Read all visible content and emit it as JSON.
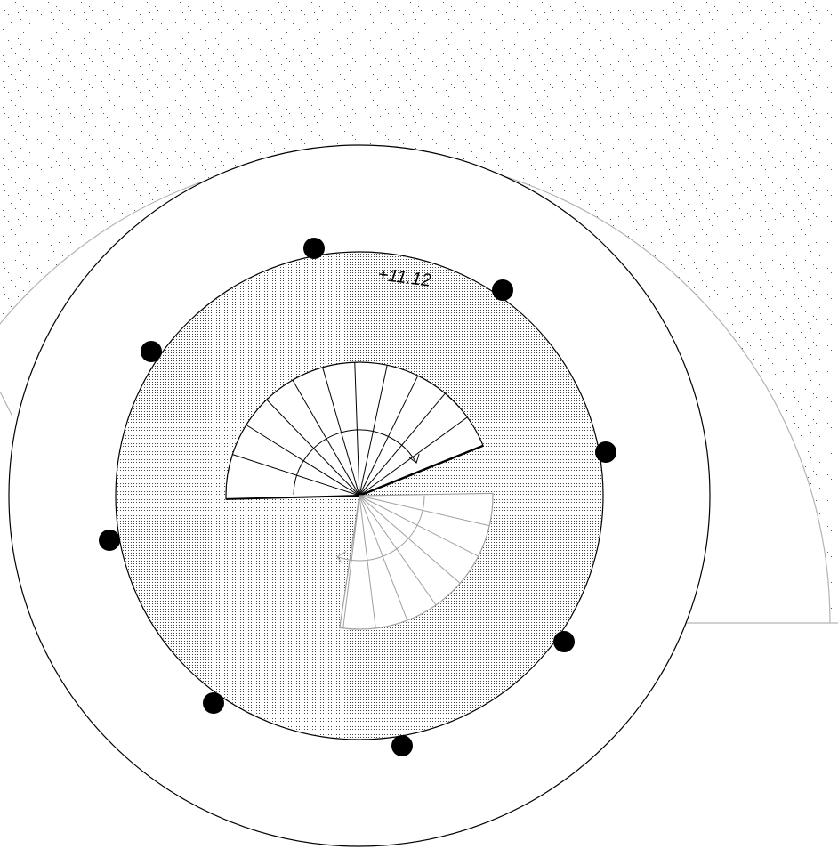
{
  "diagram": {
    "reading_label": "+11.12",
    "colors": {
      "background": "#ffffff",
      "outline": "#000000",
      "guide_line": "#b4b4b4",
      "sector_line": "#a0a0a0",
      "stipple": "#333333",
      "marker": "#000000"
    }
  }
}
